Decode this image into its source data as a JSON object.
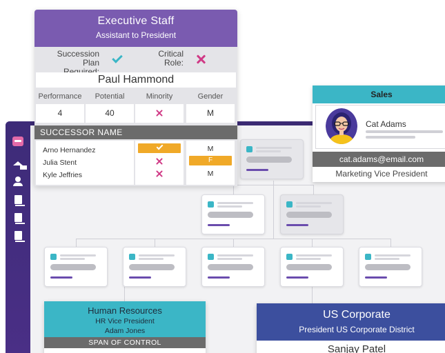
{
  "exec_card": {
    "title": "Executive Staff",
    "subtitle": "Assistant to President",
    "succession_label_1": "Succession",
    "succession_label_2": "Plan Required:",
    "succession_value": "check",
    "critical_label_1": "Critical",
    "critical_label_2": "Role:",
    "critical_value": "x",
    "name": "Paul Hammond",
    "metric_headers": [
      "Performance",
      "Potential",
      "Minority",
      "Gender"
    ],
    "metrics": {
      "performance": "4",
      "potential": "40",
      "minority": "x",
      "gender": "M"
    },
    "successor_header": "SUCCESSOR NAME",
    "successors": [
      {
        "name": "Arno Hernandez",
        "ready": "check",
        "gender": "M"
      },
      {
        "name": "Julia Stent",
        "ready": "x",
        "gender": "F"
      },
      {
        "name": "Kyle Jeffries",
        "ready": "x",
        "gender": "M"
      }
    ]
  },
  "sales_card": {
    "department": "Sales",
    "name": "Cat Adams",
    "email": "cat.adams@email.com",
    "role": "Marketing Vice President"
  },
  "hr_card": {
    "department": "Human Resources",
    "role": "HR Vice President",
    "name": "Adam Jones",
    "span_label": "SPAN OF CONTROL"
  },
  "us_card": {
    "title": "US Corporate",
    "subtitle": "President US Corporate District",
    "name": "Sanjay Patel"
  },
  "colors": {
    "purple": "#7a5bb0",
    "teal": "#3bb6c6",
    "navy": "#3c4f9e",
    "magenta": "#d03a86",
    "orange": "#f0a928",
    "gray_bar": "#6b6b6b",
    "sidebar": "#3d2b78"
  },
  "icons": [
    "app-logo-icon",
    "home-icon",
    "user-icon",
    "document-icon",
    "clipboard-icon",
    "list-icon"
  ]
}
